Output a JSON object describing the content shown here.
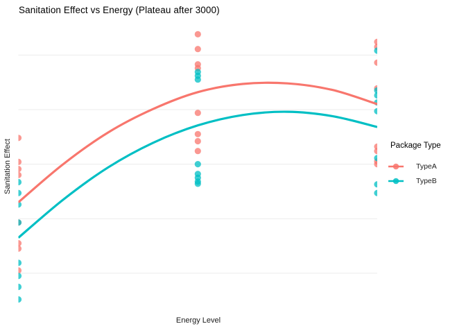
{
  "title": "Sanitation Effect vs Energy (Plateau after 3000)",
  "axes": {
    "x_label": "Energy Level",
    "y_label": "Sanitation Effect",
    "x_tick_labels_shown": false,
    "y_tick_labels_shown": false
  },
  "legend": {
    "title": "Package Type",
    "position": "right",
    "entries": [
      {
        "label": "TypeA",
        "color": "#F8766D"
      },
      {
        "label": "TypeB",
        "color": "#00BFC4"
      }
    ]
  },
  "colors": {
    "background": "#ffffff",
    "gridline": "#ebebeb",
    "title_text": "#000000",
    "axis_title_text": "#1a1a1a",
    "typea": "#F8766D",
    "typeb": "#00BFC4"
  },
  "chart_data": {
    "type": "scatter",
    "title": "Sanitation Effect vs Energy (Plateau after 3000)",
    "xlabel": "Energy Level",
    "ylabel": "Sanitation Effect",
    "xlim": [
      1000,
      5000
    ],
    "ylim": [
      44,
      95
    ],
    "x_levels": [
      1000,
      3000,
      5000
    ],
    "grid": "horizontal major gridlines only; no axis tick labels or axis lines shown",
    "gridline_values": [
      90,
      80,
      70,
      60,
      50
    ],
    "value_scale_note": "axis tick labels are not rendered in the image; y values estimated from unlabeled gridlines spaced 10 apart (50-90), x columns sit at panel left edge, center and right edge (1000/3000/5000)",
    "legend_position": "right",
    "series": [
      {
        "name": "TypeA",
        "color": "#F8766D",
        "points": [
          [
            1000,
            74.8
          ],
          [
            1000,
            70.4
          ],
          [
            1000,
            69.1
          ],
          [
            1000,
            68.0
          ],
          [
            1000,
            59.3
          ],
          [
            1000,
            55.5
          ],
          [
            1000,
            54.5
          ],
          [
            1000,
            50.5
          ],
          [
            3000,
            93.8
          ],
          [
            3000,
            91.1
          ],
          [
            3000,
            88.3
          ],
          [
            3000,
            87.6
          ],
          [
            3000,
            79.4
          ],
          [
            3000,
            75.5
          ],
          [
            3000,
            74.2
          ],
          [
            3000,
            72.4
          ],
          [
            5000,
            92.4
          ],
          [
            5000,
            91.5
          ],
          [
            5000,
            88.6
          ],
          [
            5000,
            83.9
          ],
          [
            5000,
            73.2
          ],
          [
            5000,
            72.4
          ],
          [
            5000,
            70.5
          ],
          [
            5000,
            70.0
          ]
        ],
        "smooth": [
          [
            1000,
            63.0
          ],
          [
            1500,
            70.0
          ],
          [
            2000,
            75.8
          ],
          [
            2500,
            80.1
          ],
          [
            3000,
            83.2
          ],
          [
            3500,
            84.7
          ],
          [
            4000,
            84.8
          ],
          [
            4500,
            83.6
          ],
          [
            5000,
            81.0
          ]
        ]
      },
      {
        "name": "TypeB",
        "color": "#00BFC4",
        "points": [
          [
            1000,
            66.7
          ],
          [
            1000,
            64.7
          ],
          [
            1000,
            62.6
          ],
          [
            1000,
            59.3
          ],
          [
            1000,
            51.9
          ],
          [
            1000,
            49.5
          ],
          [
            1000,
            47.5
          ],
          [
            1000,
            45.2
          ],
          [
            3000,
            86.9
          ],
          [
            3000,
            86.2
          ],
          [
            3000,
            85.5
          ],
          [
            3000,
            70.0
          ],
          [
            3000,
            68.2
          ],
          [
            3000,
            67.5
          ],
          [
            3000,
            66.8
          ],
          [
            3000,
            66.4
          ],
          [
            5000,
            90.8
          ],
          [
            5000,
            83.5
          ],
          [
            5000,
            82.6
          ],
          [
            5000,
            81.3
          ],
          [
            5000,
            79.7
          ],
          [
            5000,
            71.1
          ],
          [
            5000,
            66.3
          ],
          [
            5000,
            64.7
          ]
        ],
        "smooth": [
          [
            1000,
            56.5
          ],
          [
            1500,
            63.5
          ],
          [
            2000,
            69.4
          ],
          [
            2500,
            73.9
          ],
          [
            3000,
            77.1
          ],
          [
            3500,
            79.0
          ],
          [
            4000,
            79.6
          ],
          [
            4500,
            78.8
          ],
          [
            5000,
            76.8
          ]
        ]
      }
    ]
  }
}
